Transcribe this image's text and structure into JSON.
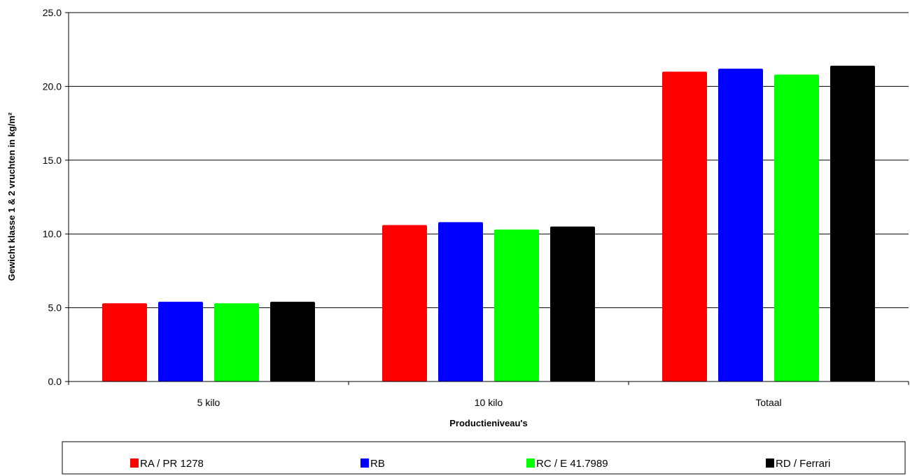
{
  "chart_data": {
    "type": "bar",
    "categories": [
      "5 kilo",
      "10 kilo",
      "Totaal"
    ],
    "series": [
      {
        "name": "RA / PR 1278",
        "color": "#ff0000",
        "values": [
          5.3,
          10.6,
          21.0
        ]
      },
      {
        "name": "RB",
        "color": "#0000ff",
        "values": [
          5.4,
          10.8,
          21.2
        ]
      },
      {
        "name": "RC / E 41.7989",
        "color": "#00ff00",
        "values": [
          5.3,
          10.3,
          20.8
        ]
      },
      {
        "name": "RD / Ferrari",
        "color": "#000000",
        "values": [
          5.4,
          10.5,
          21.4
        ]
      }
    ],
    "xlabel": "Productieniveau's",
    "ylabel": "Gewicht klasse 1 & 2 vruchten in kg/m²",
    "ylim": [
      0,
      25
    ],
    "yticks": [
      "0.0",
      "5.0",
      "10.0",
      "15.0",
      "20.0",
      "25.0"
    ],
    "grid": true,
    "legend_position": "bottom"
  }
}
